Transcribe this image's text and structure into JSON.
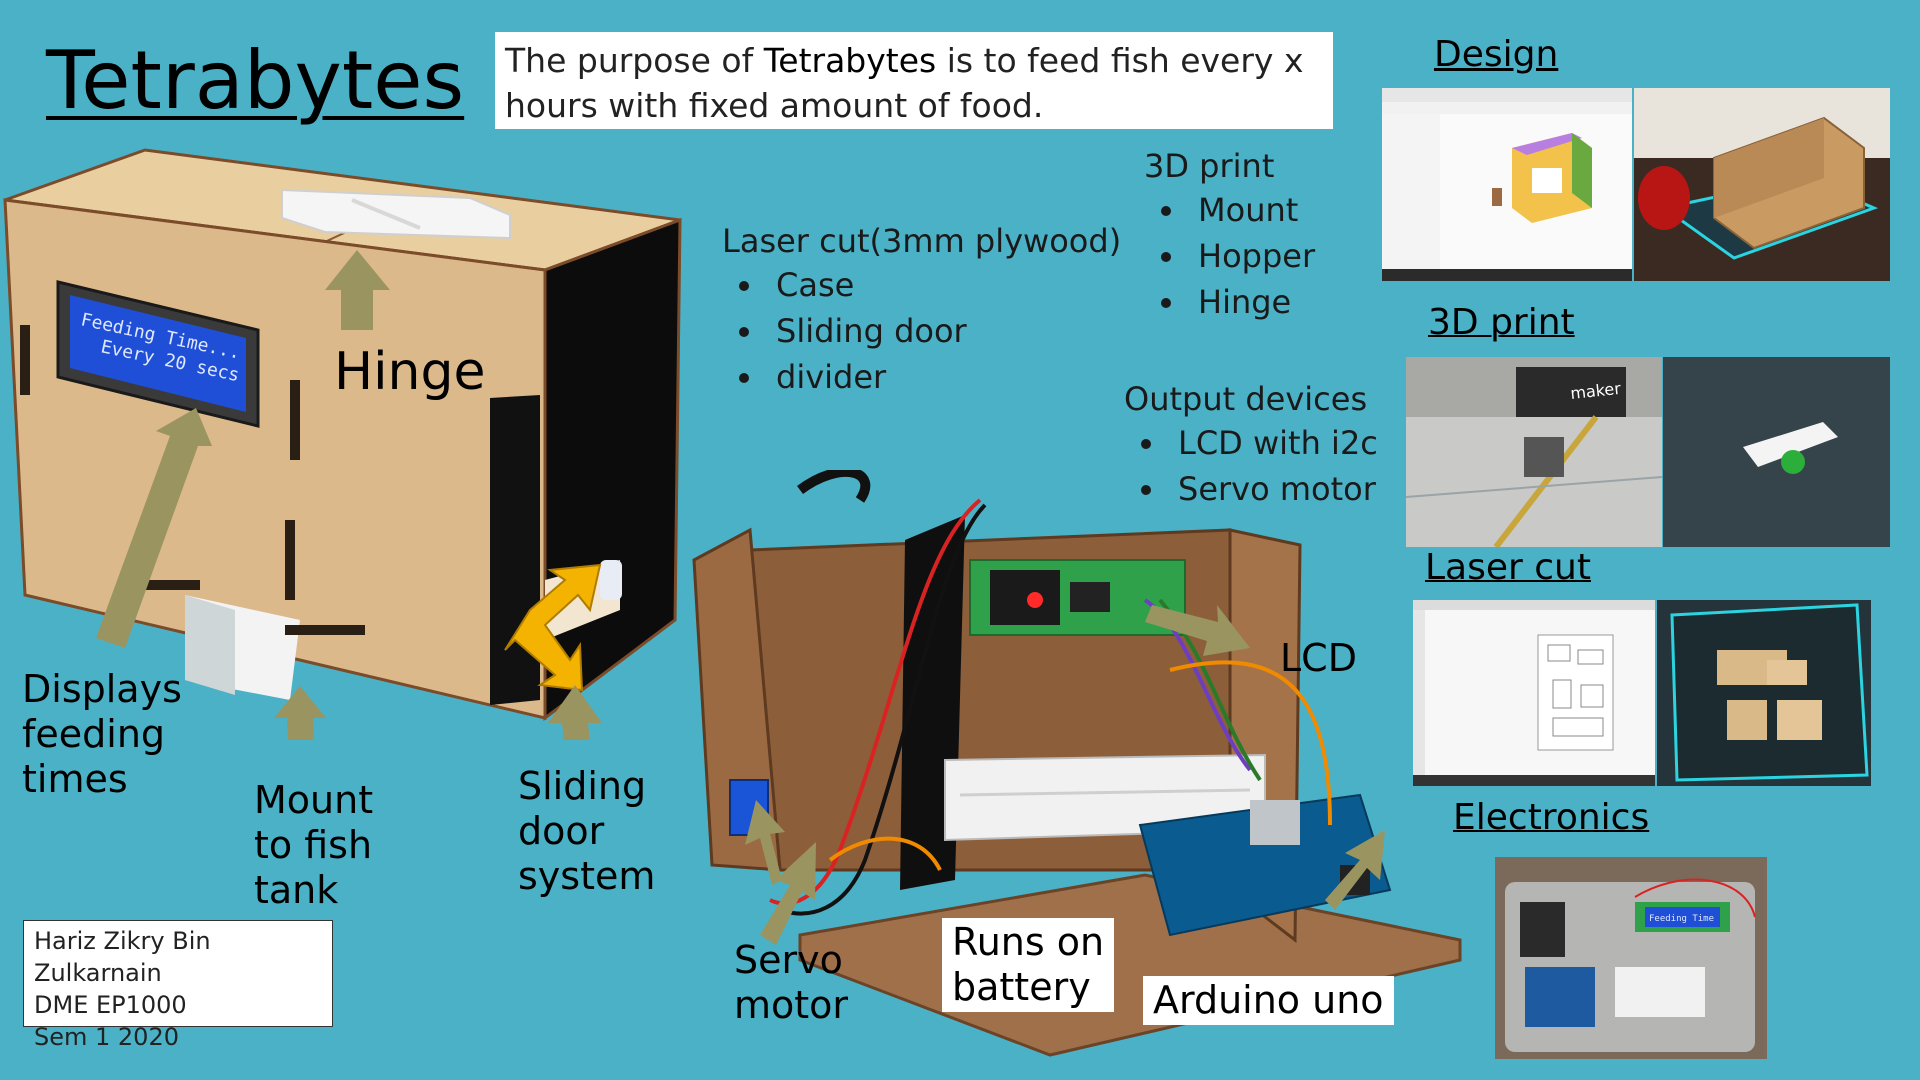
{
  "title": "Tetrabytes",
  "purpose": {
    "prefix": "The purpose of ",
    "name": "Tetrabytes",
    "suffix": " is to feed fish every x hours with fixed amount of food."
  },
  "lcd_screen": {
    "line1": "Feeding Time...",
    "line2": "Every 20 secs"
  },
  "labels": {
    "hinge": "Hinge",
    "displays": [
      "Displays",
      "feeding",
      "times"
    ],
    "mount": [
      "Mount",
      "to fish",
      "tank"
    ],
    "sliding": [
      "Sliding",
      "door",
      "system"
    ],
    "lcd": "LCD",
    "servo": [
      "Servo",
      "motor"
    ],
    "battery": [
      "Runs on",
      "battery"
    ],
    "arduino": "Arduino uno"
  },
  "laser_list": {
    "heading": "Laser cut(3mm plywood)",
    "items": [
      "Case",
      "Sliding door",
      "divider"
    ]
  },
  "print_list": {
    "heading": "3D print",
    "items": [
      "Mount",
      "Hopper",
      "Hinge"
    ]
  },
  "output_list": {
    "heading": "Output devices",
    "items": [
      "LCD with i2c",
      "Servo motor"
    ]
  },
  "gallery": {
    "design": "Design",
    "print": "3D print",
    "laser": "Laser cut",
    "electronics": "Electronics",
    "printer_brand": "maker",
    "mini_lcd": "Feeding Time"
  },
  "credit": {
    "name": "Hariz Zikry Bin Zulkarnain",
    "course": "DME EP1000",
    "sem": "Sem 1 2020"
  },
  "colors": {
    "background": "#4bb1c6",
    "arrow": "#9a9560",
    "plywood": "#dcb98a"
  }
}
